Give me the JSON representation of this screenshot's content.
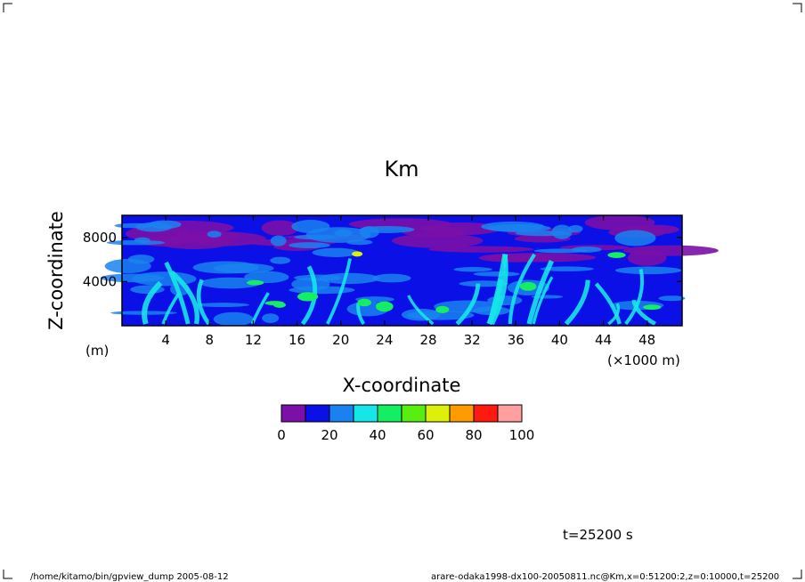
{
  "chart_data": {
    "type": "heatmap",
    "title": "Km",
    "xlabel": "X-coordinate",
    "ylabel": "Z-coordinate",
    "x_unit": "(×1000 m)",
    "y_unit": "(m)",
    "xlim": [
      0,
      51.2
    ],
    "ylim": [
      0,
      10000
    ],
    "x_ticks": [
      4,
      8,
      12,
      16,
      20,
      24,
      28,
      32,
      36,
      40,
      44,
      48
    ],
    "x_tick_labels": [
      "4",
      "8",
      "12",
      "16",
      "20",
      "24",
      "28",
      "32",
      "36",
      "40",
      "44",
      "48"
    ],
    "y_ticks": [
      4000,
      8000
    ],
    "y_tick_labels": [
      "4000",
      "8000"
    ],
    "colorbar": {
      "boundaries": [
        0,
        10,
        20,
        30,
        40,
        50,
        60,
        70,
        80,
        90,
        100
      ],
      "labels": [
        "0",
        "20",
        "40",
        "60",
        "80",
        "100"
      ],
      "label_values": [
        0,
        20,
        40,
        60,
        80,
        100
      ],
      "colors": [
        "#7a10a8",
        "#0a10e6",
        "#1a82f0",
        "#16e6e8",
        "#14ee62",
        "#58ee10",
        "#dcf00a",
        "#ff9a00",
        "#ff1a10",
        "#ff9fa0"
      ]
    }
  },
  "annotations": {
    "time_label": "t=25200 s",
    "footer_left": "/home/kitamo/bin/gpview_dump 2005-08-12",
    "footer_right": "arare-odaka1998-dx100-20050811.nc@Km,x=0:51200:2,z=0:10000,t=25200"
  }
}
